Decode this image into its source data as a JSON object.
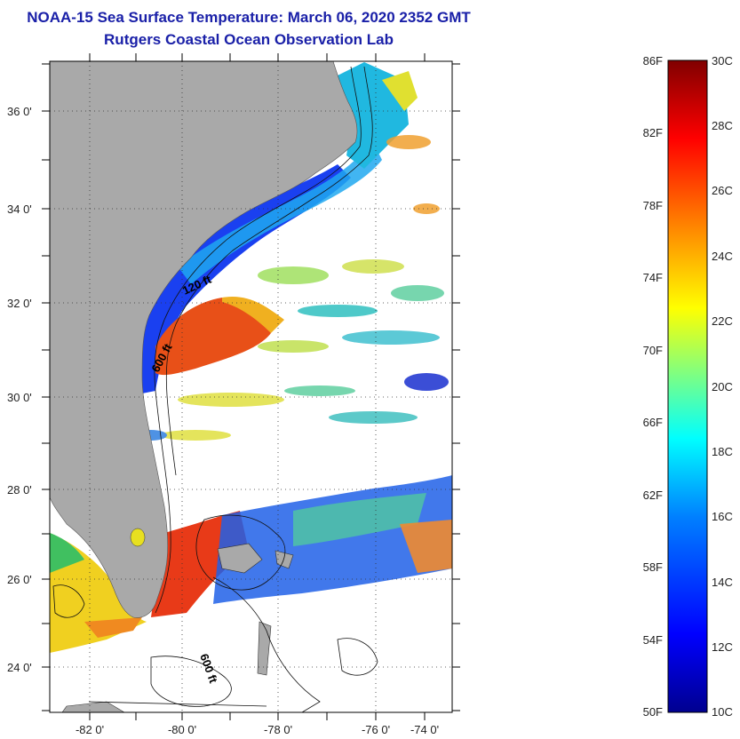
{
  "header": {
    "title": "NOAA-15 Sea Surface Temperature:  March 06, 2020 2352 GMT",
    "subtitle": "Rutgers Coastal Ocean Observation Lab"
  },
  "map": {
    "lat_labels": [
      "36 0'",
      "34 0'",
      "32 0'",
      "30 0'",
      "28 0'",
      "26 0'",
      "24 0'"
    ],
    "lon_labels": [
      "-82 0'",
      "-80 0'",
      "-78 0'",
      "-76 0'",
      "-74 0'"
    ],
    "contour_labels": {
      "c120": "120 ft",
      "c600a": "600 ft",
      "c600b": "600 ft"
    },
    "colors": {
      "land": "#a9a9a9",
      "ocean_bg": "#ffffff",
      "cold": "#1a3cf0",
      "warm": "#e8401a",
      "mid": "#e8e020"
    }
  },
  "colorbar": {
    "fahrenheit": [
      "86F",
      "82F",
      "78F",
      "74F",
      "70F",
      "66F",
      "62F",
      "58F",
      "54F",
      "50F"
    ],
    "celsius": [
      "30C",
      "28C",
      "26C",
      "24C",
      "22C",
      "20C",
      "18C",
      "16C",
      "14C",
      "12C",
      "10C"
    ],
    "gradient": [
      "#00008f",
      "#0000ff",
      "#0080ff",
      "#00ffff",
      "#80ff80",
      "#ffff00",
      "#ff8000",
      "#ff0000",
      "#800000"
    ]
  }
}
